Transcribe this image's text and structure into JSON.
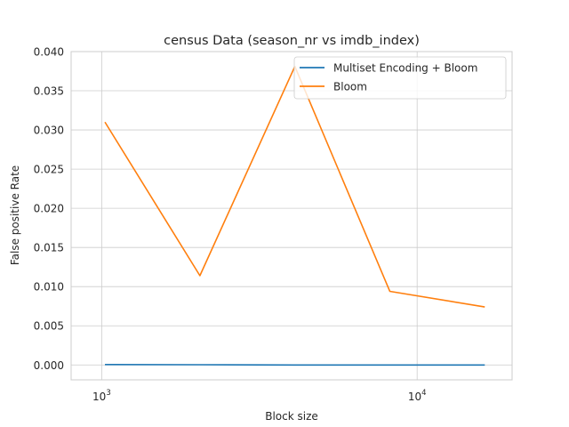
{
  "chart_data": {
    "type": "line",
    "title": "census Data (season_nr vs imdb_index)",
    "xlabel": "Block size",
    "ylabel": "False positive Rate",
    "xscale": "log",
    "xlim": [
      800,
      20000
    ],
    "ylim": [
      -0.0019,
      0.04
    ],
    "x_ticks": [
      {
        "value": 1000,
        "base": "10",
        "exp": "3"
      },
      {
        "value": 10000,
        "base": "10",
        "exp": "4"
      }
    ],
    "y_ticks": [
      "0.000",
      "0.005",
      "0.010",
      "0.015",
      "0.020",
      "0.025",
      "0.030",
      "0.035",
      "0.040"
    ],
    "grid": true,
    "legend_position": "top-right",
    "series": [
      {
        "name": "Multiset Encoding + Bloom",
        "color": "#1f77b4",
        "x": [
          1024,
          2048,
          4096,
          8192,
          16384
        ],
        "y": [
          5e-05,
          3e-05,
          0.0,
          0.0,
          0.0
        ]
      },
      {
        "name": "Bloom",
        "color": "#ff7f0e",
        "x": [
          1024,
          2048,
          4096,
          8192,
          16384
        ],
        "y": [
          0.031,
          0.0114,
          0.0381,
          0.0094,
          0.0074
        ]
      }
    ]
  }
}
